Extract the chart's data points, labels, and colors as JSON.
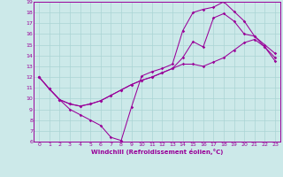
{
  "background_color": "#cce9e9",
  "line_color": "#990099",
  "grid_color": "#aad4d4",
  "xlabel": "Windchill (Refroidissement éolien,°C)",
  "xlim": [
    -0.5,
    23.5
  ],
  "ylim": [
    6,
    19
  ],
  "xticks": [
    0,
    1,
    2,
    3,
    4,
    5,
    6,
    7,
    8,
    9,
    10,
    11,
    12,
    13,
    14,
    15,
    16,
    17,
    18,
    19,
    20,
    21,
    22,
    23
  ],
  "yticks": [
    6,
    7,
    8,
    9,
    10,
    11,
    12,
    13,
    14,
    15,
    16,
    17,
    18,
    19
  ],
  "curves": [
    {
      "x": [
        0,
        1,
        2,
        3,
        4,
        5,
        6,
        7,
        8,
        9,
        10,
        11,
        12,
        13,
        14,
        15,
        16,
        17,
        18,
        19,
        20,
        21,
        22,
        23
      ],
      "y": [
        12.0,
        10.9,
        9.9,
        9.0,
        8.5,
        8.0,
        7.5,
        6.4,
        6.1,
        9.2,
        12.1,
        12.5,
        12.8,
        13.2,
        16.3,
        18.0,
        18.3,
        18.5,
        19.0,
        18.1,
        17.2,
        15.8,
        14.8,
        13.5
      ]
    },
    {
      "x": [
        0,
        1,
        2,
        3,
        4,
        5,
        6,
        7,
        8,
        9,
        10,
        11,
        12,
        13,
        14,
        15,
        16,
        17,
        18,
        19,
        20,
        21,
        22,
        23
      ],
      "y": [
        12.0,
        10.9,
        9.9,
        9.5,
        9.3,
        9.5,
        9.8,
        10.3,
        10.8,
        11.3,
        11.7,
        12.0,
        12.4,
        12.8,
        13.8,
        15.3,
        14.8,
        17.5,
        17.9,
        17.2,
        16.0,
        15.8,
        15.0,
        14.2
      ]
    },
    {
      "x": [
        0,
        1,
        2,
        3,
        4,
        5,
        6,
        7,
        8,
        9,
        10,
        11,
        12,
        13,
        14,
        15,
        16,
        17,
        18,
        19,
        20,
        21,
        22,
        23
      ],
      "y": [
        12.0,
        10.9,
        9.9,
        9.5,
        9.3,
        9.5,
        9.8,
        10.3,
        10.8,
        11.3,
        11.7,
        12.0,
        12.4,
        12.8,
        13.2,
        13.2,
        13.0,
        13.4,
        13.8,
        14.5,
        15.2,
        15.5,
        14.8,
        13.8
      ]
    }
  ]
}
